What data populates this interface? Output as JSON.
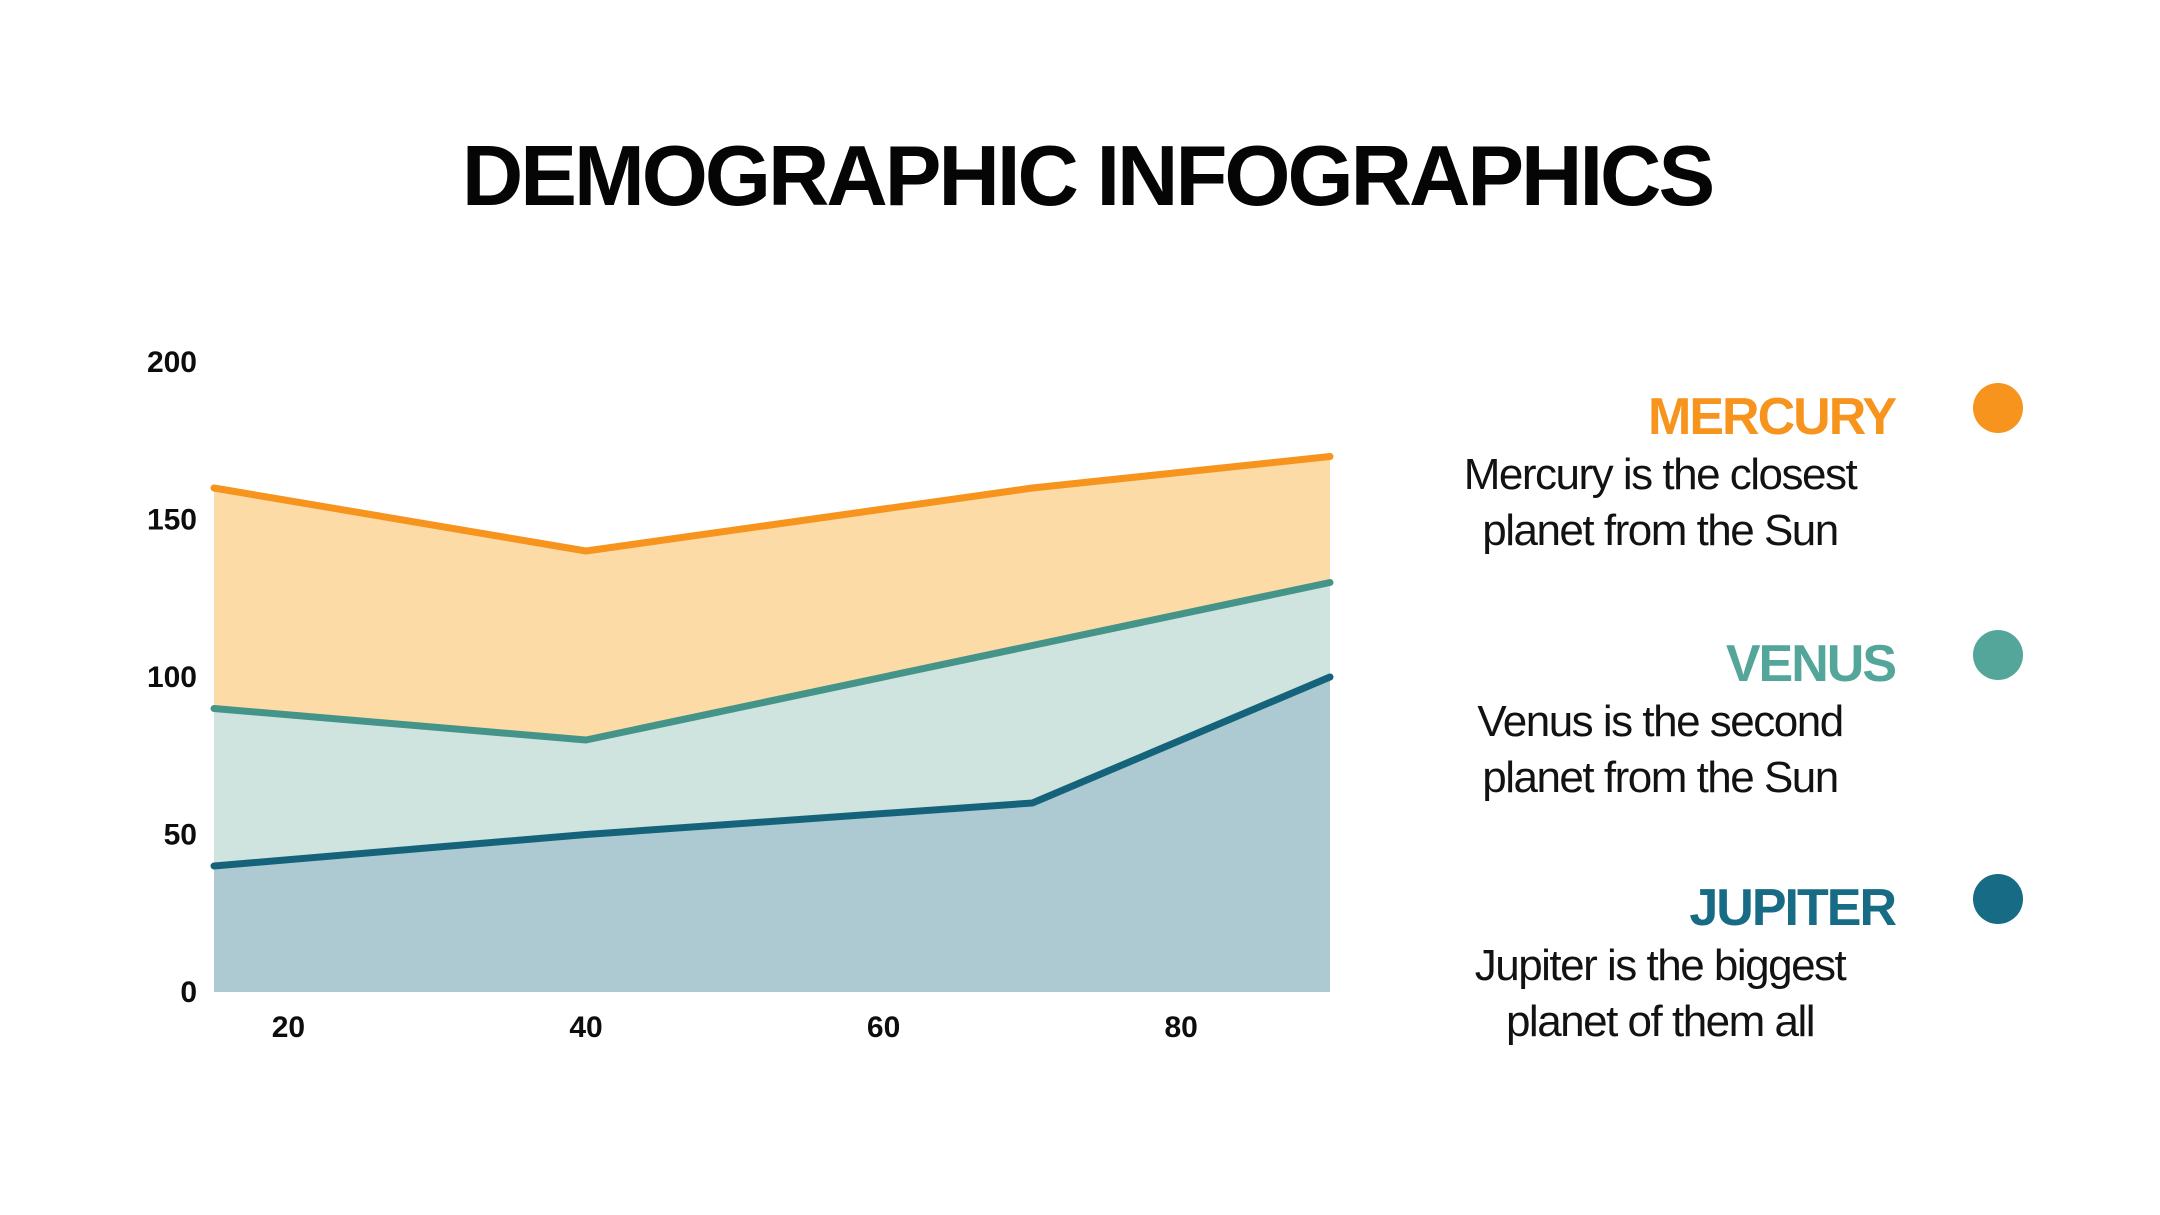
{
  "title": "DEMOGRAPHIC INFOGRAPHICS",
  "chart_data": {
    "type": "area",
    "x": [
      15,
      40,
      70,
      90
    ],
    "series": [
      {
        "name": "Mercury",
        "values": [
          160,
          140,
          160,
          170
        ],
        "line_color": "#F7941D",
        "fill_color": "#FCDBA6"
      },
      {
        "name": "Venus",
        "values": [
          90,
          80,
          110,
          130
        ],
        "line_color": "#449489",
        "fill_color": "#CFE3DF"
      },
      {
        "name": "Jupiter",
        "values": [
          40,
          50,
          60,
          100
        ],
        "line_color": "#15637B",
        "fill_color": "#ADC9D2"
      }
    ],
    "title": "DEMOGRAPHIC INFOGRAPHICS",
    "xlabel": "",
    "ylabel": "",
    "xlim": [
      15,
      90
    ],
    "ylim": [
      0,
      200
    ],
    "x_ticks": [
      20,
      40,
      60,
      80
    ],
    "y_ticks": [
      0,
      50,
      100,
      150,
      200
    ],
    "tick_color": "#0d0d0d",
    "grid": false,
    "legend_position": "right"
  },
  "legend": {
    "items": [
      {
        "name": "MERCURY",
        "color": "#F7941E",
        "lines": [
          "Mercury is the closest",
          "planet from the Sun"
        ]
      },
      {
        "name": "VENUS",
        "color": "#55A69A",
        "lines": [
          "Venus is the second",
          "planet from the Sun"
        ]
      },
      {
        "name": "JUPITER",
        "color": "#176B85",
        "lines": [
          "Jupiter is the biggest",
          "planet of them all"
        ]
      }
    ]
  }
}
